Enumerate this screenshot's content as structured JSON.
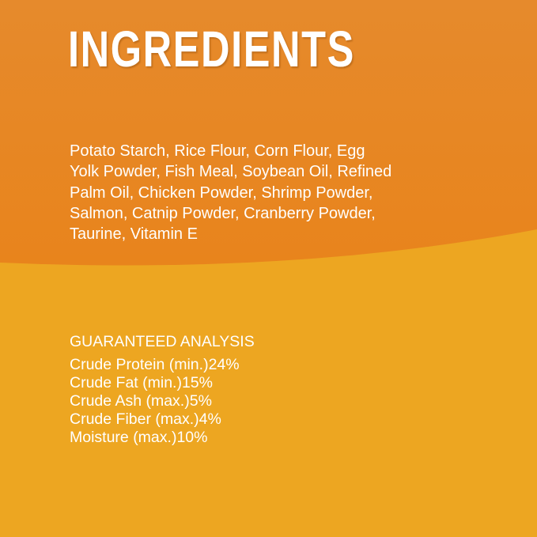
{
  "title": "INGREDIENTS",
  "ingredients": [
    "Potato Starch, Rice Flour, Corn Flour, Egg",
    "Yolk Powder, Fish Meal, Soybean Oil, Refined",
    "Palm Oil, Chicken Powder, Shrimp Powder,",
    "Salmon, Catnip Powder, Cranberry Powder,",
    "Taurine, Vitamin E"
  ],
  "analysis": {
    "heading": "GUARANTEED ANALYSIS",
    "rows": [
      [
        "Crude Protein (min.)",
        "24%"
      ],
      [
        "Crude Fat (min.)",
        "15%"
      ],
      [
        "Crude Ash (max.)",
        "5%"
      ],
      [
        "Crude Fiber (max.)",
        "4%"
      ],
      [
        "Moisture (max.)",
        "10%"
      ]
    ]
  }
}
